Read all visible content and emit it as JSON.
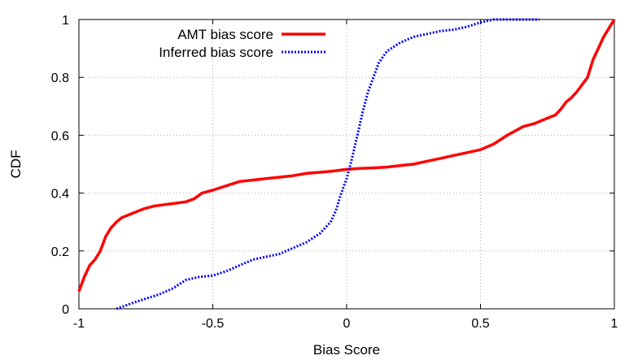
{
  "chart_data": {
    "type": "line",
    "xlabel": "Bias Score",
    "ylabel": "CDF",
    "xlim": [
      -1,
      1
    ],
    "ylim": [
      0,
      1
    ],
    "x_ticks": [
      "-1",
      "-0.5",
      "0",
      "0.5",
      "1"
    ],
    "y_ticks": [
      "0",
      "0.2",
      "0.4",
      "0.6",
      "0.8",
      "1"
    ],
    "grid": "dotted",
    "legend_position": "top-center",
    "series": [
      {
        "name": "AMT bias score",
        "color": "#ff0000",
        "style": "solid",
        "x": [
          -1.0,
          -0.98,
          -0.96,
          -0.94,
          -0.92,
          -0.9,
          -0.88,
          -0.86,
          -0.84,
          -0.8,
          -0.76,
          -0.72,
          -0.68,
          -0.64,
          -0.6,
          -0.57,
          -0.54,
          -0.5,
          -0.45,
          -0.4,
          -0.3,
          -0.2,
          -0.15,
          -0.1,
          -0.05,
          0.0,
          0.05,
          0.1,
          0.15,
          0.2,
          0.25,
          0.3,
          0.35,
          0.4,
          0.45,
          0.5,
          0.55,
          0.6,
          0.63,
          0.66,
          0.7,
          0.74,
          0.78,
          0.8,
          0.82,
          0.84,
          0.86,
          0.88,
          0.9,
          0.92,
          0.94,
          0.96,
          0.98,
          1.0
        ],
        "y": [
          0.06,
          0.11,
          0.15,
          0.17,
          0.2,
          0.25,
          0.28,
          0.3,
          0.315,
          0.33,
          0.345,
          0.355,
          0.36,
          0.365,
          0.37,
          0.38,
          0.4,
          0.41,
          0.425,
          0.44,
          0.45,
          0.46,
          0.468,
          0.472,
          0.476,
          0.482,
          0.485,
          0.487,
          0.49,
          0.495,
          0.5,
          0.51,
          0.52,
          0.53,
          0.54,
          0.55,
          0.57,
          0.6,
          0.615,
          0.63,
          0.64,
          0.655,
          0.67,
          0.69,
          0.715,
          0.73,
          0.75,
          0.775,
          0.8,
          0.86,
          0.9,
          0.94,
          0.97,
          1.0
        ]
      },
      {
        "name": "Inferred bias score",
        "color": "#0000ff",
        "style": "dotted",
        "x": [
          -0.86,
          -0.8,
          -0.75,
          -0.7,
          -0.65,
          -0.6,
          -0.55,
          -0.5,
          -0.45,
          -0.4,
          -0.35,
          -0.3,
          -0.25,
          -0.2,
          -0.15,
          -0.1,
          -0.08,
          -0.06,
          -0.04,
          -0.02,
          0.0,
          0.02,
          0.04,
          0.06,
          0.08,
          0.1,
          0.12,
          0.15,
          0.2,
          0.25,
          0.3,
          0.35,
          0.4,
          0.45,
          0.5,
          0.55,
          0.6,
          0.65,
          0.72
        ],
        "y": [
          0.0,
          0.02,
          0.035,
          0.05,
          0.07,
          0.1,
          0.11,
          0.115,
          0.13,
          0.15,
          0.17,
          0.18,
          0.19,
          0.21,
          0.23,
          0.26,
          0.28,
          0.3,
          0.34,
          0.4,
          0.45,
          0.52,
          0.6,
          0.68,
          0.75,
          0.8,
          0.85,
          0.89,
          0.92,
          0.94,
          0.95,
          0.96,
          0.965,
          0.975,
          0.99,
          1.0,
          1.0,
          1.0,
          1.0
        ]
      }
    ]
  }
}
